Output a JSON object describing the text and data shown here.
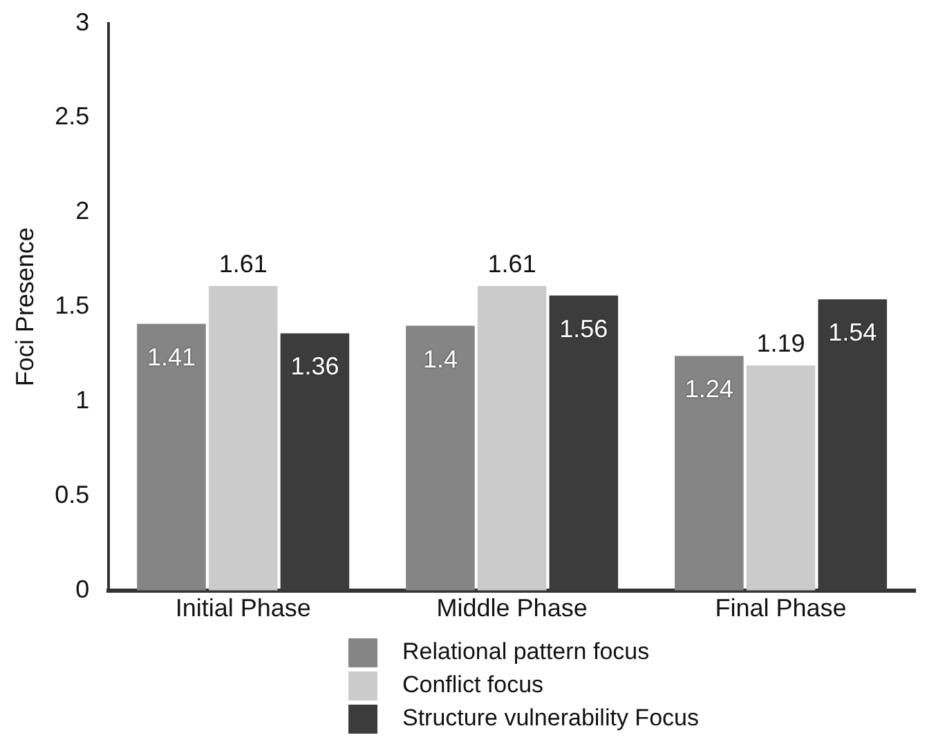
{
  "chart_data": {
    "type": "bar",
    "ylabel": "Foci Presence",
    "categories": [
      "Initial Phase",
      "Middle Phase",
      "Final Phase"
    ],
    "series": [
      {
        "name": "Relational pattern focus",
        "color": "#858585",
        "values": [
          1.41,
          1.4,
          1.24
        ]
      },
      {
        "name": "Conflict focus",
        "color": "#cbcbcb",
        "values": [
          1.61,
          1.61,
          1.19
        ]
      },
      {
        "name": "Structure vulnerability Focus",
        "color": "#3c3c3c",
        "values": [
          1.36,
          1.56,
          1.54
        ]
      }
    ],
    "ylim": [
      0,
      3
    ],
    "yticks": [
      0,
      0.5,
      1,
      1.5,
      2,
      2.5,
      3
    ],
    "grid": false,
    "legend": "bottom",
    "data_labels": true
  }
}
